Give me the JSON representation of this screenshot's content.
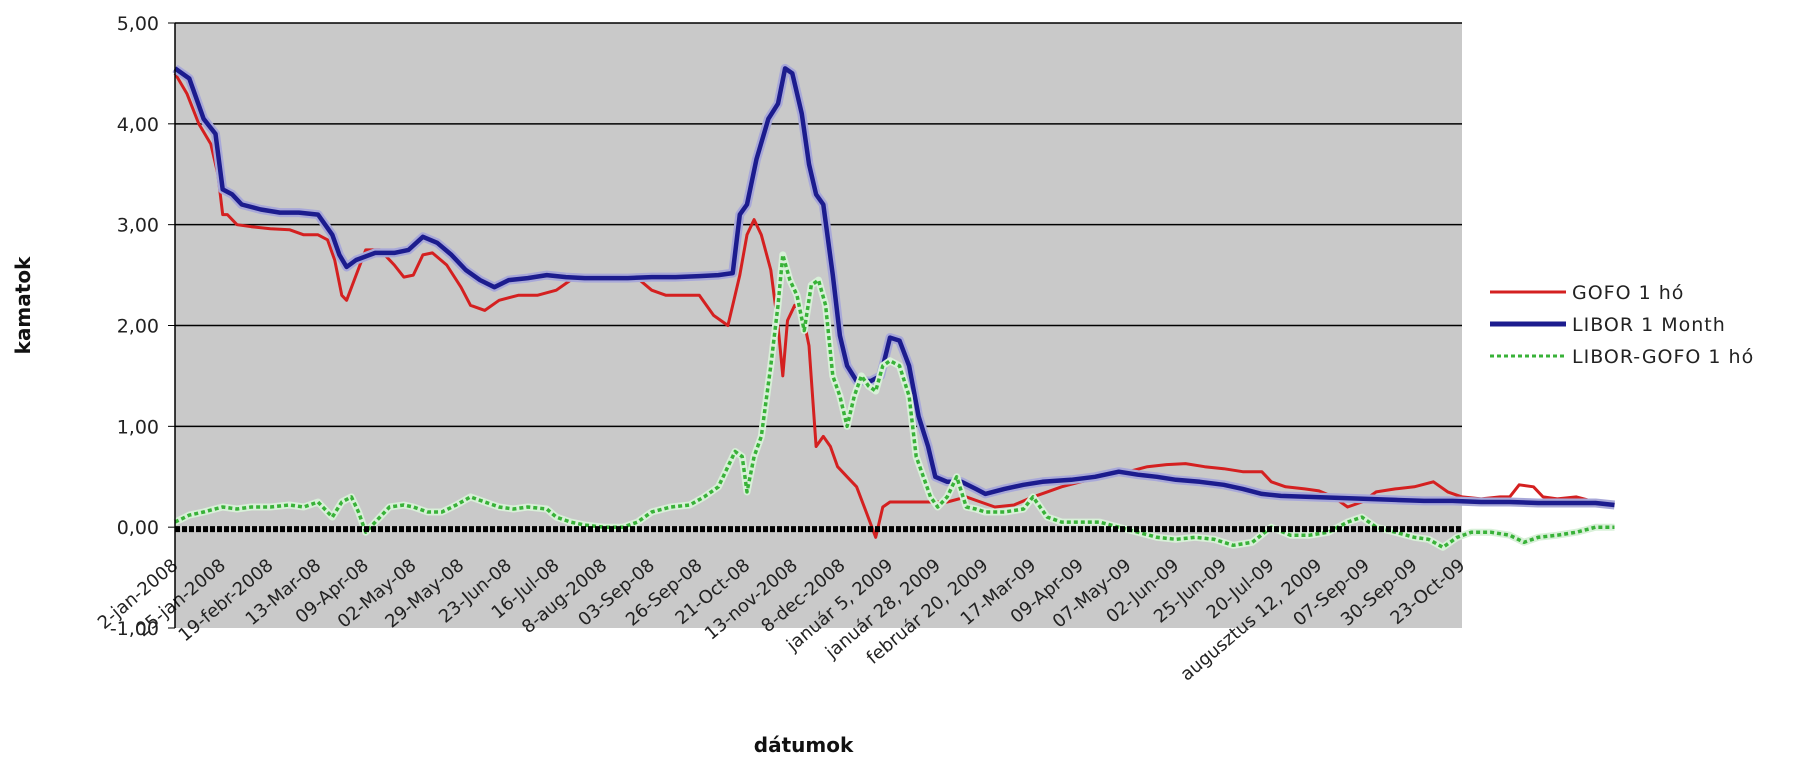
{
  "chart_data": {
    "type": "line",
    "xlabel": "dátumok",
    "ylabel": "kamatok",
    "ylim": [
      -1,
      5
    ],
    "y_ticks": [
      "-1,00",
      "0,00",
      "1,00",
      "2,00",
      "3,00",
      "4,00",
      "5,00"
    ],
    "x_tick_labels": [
      "2-jan-2008",
      "25-jan-2008",
      "19-febr-2008",
      "13-Mar-08",
      "09-Apr-08",
      "02-May-08",
      "29-May-08",
      "23-Jun-08",
      "16-Jul-08",
      "8-aug-2008",
      "03-Sep-08",
      "26-Sep-08",
      "21-Oct-08",
      "13-nov-2008",
      "8-dec-2008",
      "január 5, 2009",
      "január 28, 2009",
      "február 20, 2009",
      "17-Mar-09",
      "09-Apr-09",
      "07-May-09",
      "02-Jun-09",
      "25-Jun-09",
      "20-Jul-09",
      "augusztus 12, 2009",
      "07-Sep-09",
      "30-Sep-09",
      "23-Oct-09"
    ],
    "grid": "horizontal",
    "legend_position": "right",
    "colors": {
      "plot_background": "#c9c9c9",
      "gofo": "#d42020",
      "libor": "#1c1c8e",
      "spread": "#38b238"
    },
    "series": [
      {
        "name": "GOFO 1 hó",
        "color": "#d42020",
        "points": [
          [
            0,
            4.5
          ],
          [
            0.25,
            4.3
          ],
          [
            0.5,
            4.0
          ],
          [
            0.75,
            3.8
          ],
          [
            0.9,
            3.5
          ],
          [
            1.0,
            3.1
          ],
          [
            1.1,
            3.1
          ],
          [
            1.3,
            3.0
          ],
          [
            1.6,
            2.98
          ],
          [
            2.0,
            2.96
          ],
          [
            2.4,
            2.95
          ],
          [
            2.7,
            2.9
          ],
          [
            3.0,
            2.9
          ],
          [
            3.2,
            2.85
          ],
          [
            3.35,
            2.65
          ],
          [
            3.5,
            2.3
          ],
          [
            3.6,
            2.25
          ],
          [
            3.8,
            2.5
          ],
          [
            4.0,
            2.75
          ],
          [
            4.3,
            2.75
          ],
          [
            4.6,
            2.6
          ],
          [
            4.8,
            2.48
          ],
          [
            5.0,
            2.5
          ],
          [
            5.2,
            2.7
          ],
          [
            5.4,
            2.72
          ],
          [
            5.7,
            2.6
          ],
          [
            6.0,
            2.38
          ],
          [
            6.2,
            2.2
          ],
          [
            6.5,
            2.15
          ],
          [
            6.8,
            2.25
          ],
          [
            7.2,
            2.3
          ],
          [
            7.6,
            2.3
          ],
          [
            8.0,
            2.35
          ],
          [
            8.3,
            2.45
          ],
          [
            8.7,
            2.47
          ],
          [
            9.0,
            2.47
          ],
          [
            9.4,
            2.48
          ],
          [
            9.7,
            2.47
          ],
          [
            10.0,
            2.35
          ],
          [
            10.3,
            2.3
          ],
          [
            10.6,
            2.3
          ],
          [
            11.0,
            2.3
          ],
          [
            11.3,
            2.1
          ],
          [
            11.6,
            2.0
          ],
          [
            11.7,
            2.2
          ],
          [
            11.85,
            2.5
          ],
          [
            12.0,
            2.9
          ],
          [
            12.15,
            3.05
          ],
          [
            12.3,
            2.9
          ],
          [
            12.5,
            2.55
          ],
          [
            12.65,
            2.0
          ],
          [
            12.75,
            1.5
          ],
          [
            12.85,
            2.05
          ],
          [
            13.0,
            2.2
          ],
          [
            13.15,
            2.15
          ],
          [
            13.3,
            1.8
          ],
          [
            13.45,
            0.8
          ],
          [
            13.6,
            0.9
          ],
          [
            13.75,
            0.8
          ],
          [
            13.9,
            0.6
          ],
          [
            14.1,
            0.5
          ],
          [
            14.3,
            0.4
          ],
          [
            14.5,
            0.15
          ],
          [
            14.7,
            -0.1
          ],
          [
            14.85,
            0.2
          ],
          [
            15.0,
            0.25
          ],
          [
            15.4,
            0.25
          ],
          [
            15.8,
            0.25
          ],
          [
            16.2,
            0.25
          ],
          [
            16.6,
            0.3
          ],
          [
            16.9,
            0.25
          ],
          [
            17.2,
            0.2
          ],
          [
            17.6,
            0.22
          ],
          [
            18.0,
            0.3
          ],
          [
            18.3,
            0.35
          ],
          [
            18.6,
            0.4
          ],
          [
            19.0,
            0.45
          ],
          [
            19.5,
            0.5
          ],
          [
            20.0,
            0.55
          ],
          [
            20.4,
            0.6
          ],
          [
            20.8,
            0.62
          ],
          [
            21.2,
            0.63
          ],
          [
            21.6,
            0.6
          ],
          [
            22.0,
            0.58
          ],
          [
            22.4,
            0.55
          ],
          [
            22.8,
            0.55
          ],
          [
            23.0,
            0.45
          ],
          [
            23.3,
            0.4
          ],
          [
            23.7,
            0.38
          ],
          [
            24.0,
            0.36
          ],
          [
            24.3,
            0.3
          ],
          [
            24.6,
            0.2
          ],
          [
            24.9,
            0.25
          ],
          [
            25.2,
            0.35
          ],
          [
            25.6,
            0.38
          ],
          [
            26.0,
            0.4
          ],
          [
            26.4,
            0.45
          ],
          [
            26.7,
            0.35
          ],
          [
            27.0,
            0.3
          ],
          [
            27.4,
            0.28
          ],
          [
            27.8,
            0.3
          ],
          [
            28.0,
            0.3
          ],
          [
            28.2,
            0.42
          ],
          [
            28.5,
            0.4
          ],
          [
            28.7,
            0.3
          ],
          [
            29.0,
            0.28
          ],
          [
            29.4,
            0.3
          ],
          [
            29.8,
            0.25
          ],
          [
            30.2,
            0.22
          ]
        ]
      },
      {
        "name": "LIBOR 1 Month",
        "color": "#1c1c8e",
        "points": [
          [
            0,
            4.55
          ],
          [
            0.3,
            4.45
          ],
          [
            0.6,
            4.05
          ],
          [
            0.85,
            3.9
          ],
          [
            1.0,
            3.35
          ],
          [
            1.2,
            3.3
          ],
          [
            1.4,
            3.2
          ],
          [
            1.8,
            3.15
          ],
          [
            2.2,
            3.12
          ],
          [
            2.6,
            3.12
          ],
          [
            3.0,
            3.1
          ],
          [
            3.3,
            2.9
          ],
          [
            3.45,
            2.7
          ],
          [
            3.6,
            2.58
          ],
          [
            3.8,
            2.65
          ],
          [
            4.2,
            2.72
          ],
          [
            4.6,
            2.72
          ],
          [
            4.9,
            2.75
          ],
          [
            5.2,
            2.88
          ],
          [
            5.5,
            2.82
          ],
          [
            5.8,
            2.7
          ],
          [
            6.1,
            2.55
          ],
          [
            6.4,
            2.45
          ],
          [
            6.7,
            2.38
          ],
          [
            7.0,
            2.45
          ],
          [
            7.4,
            2.47
          ],
          [
            7.8,
            2.5
          ],
          [
            8.2,
            2.48
          ],
          [
            8.6,
            2.47
          ],
          [
            9.0,
            2.47
          ],
          [
            9.5,
            2.47
          ],
          [
            10.0,
            2.48
          ],
          [
            10.5,
            2.48
          ],
          [
            11.0,
            2.49
          ],
          [
            11.4,
            2.5
          ],
          [
            11.7,
            2.52
          ],
          [
            11.85,
            3.1
          ],
          [
            12.0,
            3.2
          ],
          [
            12.2,
            3.65
          ],
          [
            12.45,
            4.05
          ],
          [
            12.65,
            4.2
          ],
          [
            12.8,
            4.55
          ],
          [
            12.95,
            4.5
          ],
          [
            13.15,
            4.1
          ],
          [
            13.3,
            3.6
          ],
          [
            13.45,
            3.3
          ],
          [
            13.6,
            3.2
          ],
          [
            13.8,
            2.5
          ],
          [
            13.95,
            1.9
          ],
          [
            14.1,
            1.6
          ],
          [
            14.3,
            1.45
          ],
          [
            14.6,
            1.45
          ],
          [
            14.8,
            1.5
          ],
          [
            15.0,
            1.88
          ],
          [
            15.2,
            1.85
          ],
          [
            15.4,
            1.6
          ],
          [
            15.6,
            1.1
          ],
          [
            15.8,
            0.8
          ],
          [
            15.95,
            0.5
          ],
          [
            16.2,
            0.45
          ],
          [
            16.5,
            0.45
          ],
          [
            16.8,
            0.38
          ],
          [
            17.0,
            0.33
          ],
          [
            17.4,
            0.38
          ],
          [
            17.8,
            0.42
          ],
          [
            18.2,
            0.45
          ],
          [
            18.8,
            0.47
          ],
          [
            19.3,
            0.5
          ],
          [
            19.8,
            0.55
          ],
          [
            20.2,
            0.52
          ],
          [
            20.6,
            0.5
          ],
          [
            21.0,
            0.47
          ],
          [
            21.5,
            0.45
          ],
          [
            22.0,
            0.42
          ],
          [
            22.4,
            0.38
          ],
          [
            22.8,
            0.33
          ],
          [
            23.2,
            0.31
          ],
          [
            23.8,
            0.3
          ],
          [
            24.4,
            0.29
          ],
          [
            25.0,
            0.28
          ],
          [
            25.6,
            0.27
          ],
          [
            26.2,
            0.26
          ],
          [
            26.8,
            0.26
          ],
          [
            27.4,
            0.25
          ],
          [
            28.0,
            0.25
          ],
          [
            28.6,
            0.24
          ],
          [
            29.2,
            0.24
          ],
          [
            29.8,
            0.24
          ],
          [
            30.2,
            0.22
          ]
        ]
      },
      {
        "name": "LIBOR-GOFO 1 hó",
        "color": "#38b238",
        "points": [
          [
            0,
            0.05
          ],
          [
            0.3,
            0.12
          ],
          [
            0.6,
            0.15
          ],
          [
            1.0,
            0.2
          ],
          [
            1.3,
            0.18
          ],
          [
            1.6,
            0.2
          ],
          [
            2.0,
            0.2
          ],
          [
            2.4,
            0.22
          ],
          [
            2.7,
            0.2
          ],
          [
            3.0,
            0.25
          ],
          [
            3.3,
            0.1
          ],
          [
            3.5,
            0.25
          ],
          [
            3.7,
            0.3
          ],
          [
            3.85,
            0.15
          ],
          [
            4.0,
            -0.05
          ],
          [
            4.2,
            0.05
          ],
          [
            4.5,
            0.2
          ],
          [
            4.8,
            0.22
          ],
          [
            5.0,
            0.2
          ],
          [
            5.3,
            0.15
          ],
          [
            5.6,
            0.15
          ],
          [
            5.9,
            0.22
          ],
          [
            6.2,
            0.3
          ],
          [
            6.5,
            0.25
          ],
          [
            6.8,
            0.2
          ],
          [
            7.1,
            0.18
          ],
          [
            7.4,
            0.2
          ],
          [
            7.8,
            0.18
          ],
          [
            8.0,
            0.1
          ],
          [
            8.3,
            0.05
          ],
          [
            8.6,
            0.02
          ],
          [
            9.0,
            0.0
          ],
          [
            9.4,
            0.0
          ],
          [
            9.7,
            0.05
          ],
          [
            10.0,
            0.15
          ],
          [
            10.4,
            0.2
          ],
          [
            10.8,
            0.22
          ],
          [
            11.1,
            0.3
          ],
          [
            11.4,
            0.4
          ],
          [
            11.6,
            0.6
          ],
          [
            11.75,
            0.75
          ],
          [
            11.9,
            0.7
          ],
          [
            12.0,
            0.35
          ],
          [
            12.15,
            0.7
          ],
          [
            12.3,
            0.9
          ],
          [
            12.5,
            1.6
          ],
          [
            12.65,
            2.2
          ],
          [
            12.75,
            2.7
          ],
          [
            12.9,
            2.45
          ],
          [
            13.05,
            2.3
          ],
          [
            13.2,
            1.95
          ],
          [
            13.35,
            2.4
          ],
          [
            13.5,
            2.45
          ],
          [
            13.65,
            2.2
          ],
          [
            13.8,
            1.5
          ],
          [
            13.95,
            1.3
          ],
          [
            14.1,
            1.0
          ],
          [
            14.25,
            1.3
          ],
          [
            14.4,
            1.5
          ],
          [
            14.55,
            1.4
          ],
          [
            14.7,
            1.35
          ],
          [
            14.85,
            1.6
          ],
          [
            15.0,
            1.65
          ],
          [
            15.2,
            1.6
          ],
          [
            15.4,
            1.3
          ],
          [
            15.55,
            0.7
          ],
          [
            15.7,
            0.5
          ],
          [
            15.85,
            0.3
          ],
          [
            16.0,
            0.2
          ],
          [
            16.2,
            0.3
          ],
          [
            16.4,
            0.5
          ],
          [
            16.6,
            0.2
          ],
          [
            16.8,
            0.18
          ],
          [
            17.0,
            0.15
          ],
          [
            17.4,
            0.15
          ],
          [
            17.8,
            0.18
          ],
          [
            18.0,
            0.3
          ],
          [
            18.15,
            0.2
          ],
          [
            18.3,
            0.1
          ],
          [
            18.6,
            0.05
          ],
          [
            19.0,
            0.05
          ],
          [
            19.4,
            0.05
          ],
          [
            19.8,
            0.0
          ],
          [
            20.2,
            -0.05
          ],
          [
            20.6,
            -0.1
          ],
          [
            21.0,
            -0.12
          ],
          [
            21.4,
            -0.1
          ],
          [
            21.8,
            -0.12
          ],
          [
            22.2,
            -0.18
          ],
          [
            22.6,
            -0.15
          ],
          [
            23.0,
            0.0
          ],
          [
            23.4,
            -0.08
          ],
          [
            23.8,
            -0.08
          ],
          [
            24.2,
            -0.05
          ],
          [
            24.6,
            0.05
          ],
          [
            24.9,
            0.1
          ],
          [
            25.2,
            0.0
          ],
          [
            25.6,
            -0.05
          ],
          [
            26.0,
            -0.1
          ],
          [
            26.3,
            -0.12
          ],
          [
            26.6,
            -0.2
          ],
          [
            26.9,
            -0.1
          ],
          [
            27.2,
            -0.05
          ],
          [
            27.6,
            -0.05
          ],
          [
            28.0,
            -0.08
          ],
          [
            28.3,
            -0.15
          ],
          [
            28.6,
            -0.1
          ],
          [
            29.0,
            -0.08
          ],
          [
            29.4,
            -0.05
          ],
          [
            29.8,
            0.0
          ],
          [
            30.2,
            0.0
          ]
        ]
      }
    ]
  }
}
